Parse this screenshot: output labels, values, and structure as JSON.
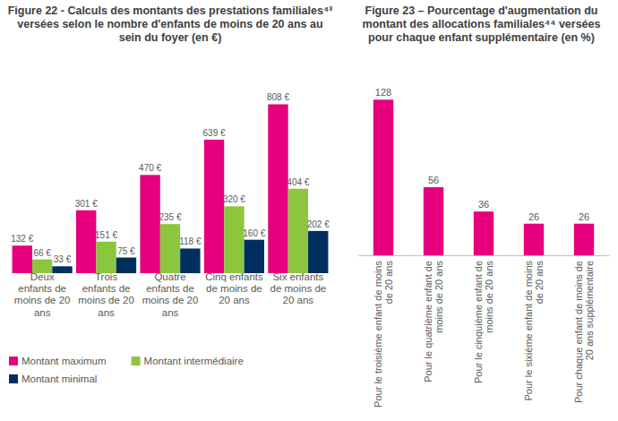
{
  "chart_data": [
    {
      "type": "bar",
      "title": "Figure 22 - Calculs des montants des prestations familiales⁴³ versées selon le nombre d'enfants de moins de 20 ans au sein du foyer (en €)",
      "categories": [
        "Deux enfants de moins de 20 ans",
        "Trois enfants de moins de 20 ans",
        "Quatre enfants de moins de 20 ans",
        "Cinq enfants de moins de 20 ans",
        "Six enfants de moins de 20 ans"
      ],
      "series": [
        {
          "name": "Montant maximum",
          "color": "#e6007e",
          "values": [
            132,
            301,
            470,
            639,
            808
          ],
          "value_labels": [
            "132 €",
            "301 €",
            "470 €",
            "639 €",
            "808 €"
          ]
        },
        {
          "name": "Montant intermédiaire",
          "color": "#8cc63e",
          "values": [
            66,
            151,
            235,
            320,
            404
          ],
          "value_labels": [
            "66 €",
            "151 €",
            "235 €",
            "320 €",
            "404 €"
          ]
        },
        {
          "name": "Montant minimal",
          "color": "#002e5f",
          "values": [
            33,
            75,
            118,
            160,
            202
          ],
          "value_labels": [
            "33 €",
            "75 €",
            "118 €",
            "160 €",
            "202 €"
          ]
        }
      ],
      "ylim": [
        0,
        900
      ],
      "data_labels": true,
      "tick_labels": "x",
      "legend": "bottom"
    },
    {
      "type": "bar",
      "title": "Figure 23 – Pourcentage d'augmentation du montant des allocations familiales⁴⁴ versées pour chaque enfant supplémentaire (en %)",
      "categories": [
        "Pour le troisième enfant de moins de 20 ans",
        "Pour le quatrième enfant de moins de 20 ans",
        "Pour le cinquième enfant de moins de 20 ans",
        "Pour le sixième enfant de moins de 20 ans",
        "Pour chaque enfant de moins de 20 ans supplémentaire"
      ],
      "values": [
        128,
        56,
        36,
        26,
        26
      ],
      "color": "#e6007e",
      "ylim": [
        0,
        140
      ],
      "data_labels": true,
      "tick_labels": "x"
    }
  ]
}
